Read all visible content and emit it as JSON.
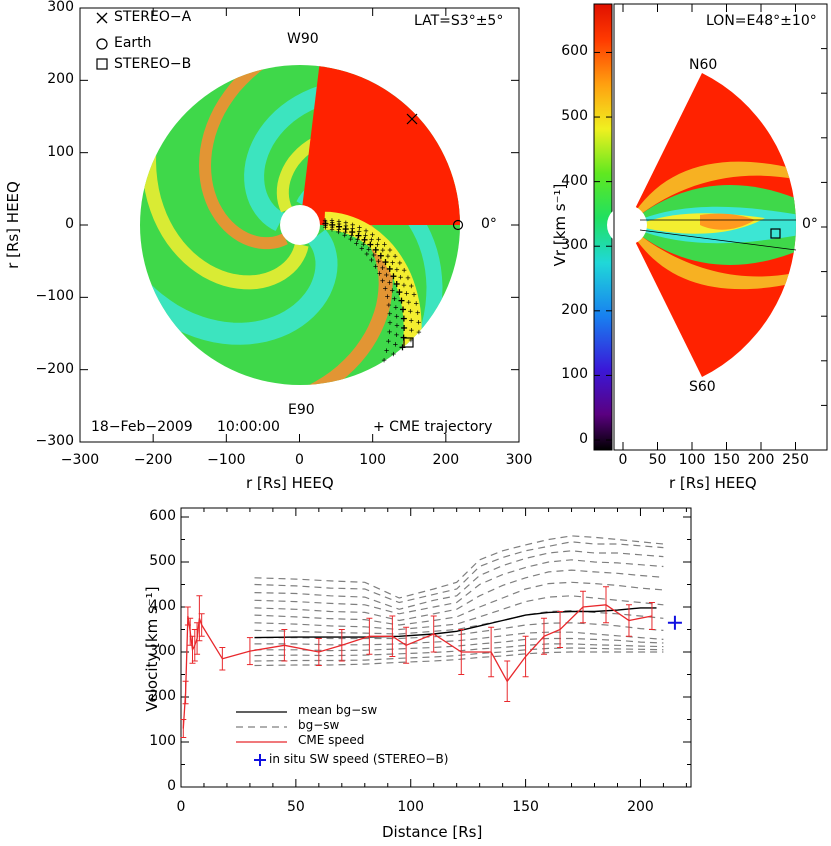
{
  "colors": {
    "axis": "#000000",
    "bg_sw_dash": "#7f7f7f",
    "mean_bg_sw": "#000000",
    "cme_speed": "#e8282c",
    "in_situ": "#1010e0",
    "fast_wind": "#ff2200",
    "slow_wind_green": "#3fd84a",
    "slow_wind_cyan": "#3ce6d4",
    "moderate_yellow": "#f4ee30"
  },
  "map_panel": {
    "legend": {
      "stereo_a": "STEREO−A",
      "earth": "Earth",
      "stereo_b": "STEREO−B"
    },
    "lat_label": "LAT=S3°±5°",
    "w90": "W90",
    "e90": "E90",
    "zero_deg": "0°",
    "date": "18−Feb−2009",
    "time": "10:00:00",
    "trajectory_label": "+ CME trajectory",
    "xlabel": "r [Rs] HEEQ",
    "ylabel": "r [Rs] HEEQ",
    "xlim": [
      -300,
      300
    ],
    "ylim": [
      -300,
      300
    ],
    "xticks": [
      "−300",
      "−200",
      "−100",
      "0",
      "100",
      "200",
      "300"
    ],
    "yticks": [
      "300",
      "200",
      "100",
      "0",
      "−100",
      "−200",
      "−300"
    ],
    "outer_radius": 215,
    "inner_radius": 21,
    "stereo_a_pos": [
      150,
      143
    ],
    "earth_pos": [
      212,
      0
    ],
    "stereo_b_pos": [
      147,
      -160
    ]
  },
  "merid_panel": {
    "lon_label": "LON=E48°±10°",
    "n60": "N60",
    "s60": "S60",
    "zero_deg": "0°",
    "xlabel": "r [Rs] HEEQ",
    "xticks": [
      "0",
      "50",
      "100",
      "150",
      "200",
      "250"
    ],
    "xlim": [
      0,
      290
    ],
    "colorbar_label": "Vr [km s⁻¹]",
    "colorbar_ticks": [
      "0",
      "100",
      "200",
      "300",
      "400",
      "500",
      "600"
    ],
    "colorbar_range": [
      0,
      675
    ],
    "stereo_b_pos": [
      215,
      3
    ]
  },
  "velocity_panel": {
    "xlabel": "Distance [Rs]",
    "ylabel": "Velocity [km s⁻¹]",
    "xlim": [
      0,
      222
    ],
    "ylim": [
      0,
      620
    ],
    "xticks": [
      "0",
      "50",
      "100",
      "150",
      "200"
    ],
    "yticks": [
      "0",
      "100",
      "200",
      "300",
      "400",
      "500",
      "600"
    ],
    "legend": {
      "mean": "mean bg−sw",
      "bg": "bg−sw",
      "cme": "CME speed",
      "insitu": "in situ SW speed (STEREO−B)"
    }
  },
  "chart_data": {
    "type": "line",
    "title": "",
    "xlabel": "Distance [Rs]",
    "ylabel": "Velocity [km s⁻¹]",
    "xlim": [
      0,
      222
    ],
    "ylim": [
      0,
      620
    ],
    "grid": false,
    "legend_position": "bottom-left",
    "series": [
      {
        "name": "mean bg−sw",
        "x": [
          32,
          50,
          65,
          80,
          95,
          110,
          120,
          130,
          140,
          150,
          160,
          170,
          180,
          190,
          200,
          207
        ],
        "y": [
          332,
          333,
          333,
          333,
          335,
          340,
          346,
          358,
          370,
          382,
          388,
          390,
          390,
          393,
          398,
          398
        ]
      },
      {
        "name": "bg−sw",
        "x": [
          32,
          50,
          65,
          80,
          95,
          110,
          120,
          130,
          140,
          150,
          160,
          170,
          180,
          190,
          200,
          210
        ],
        "y_sets": [
          [
            465,
            462,
            458,
            455,
            420,
            440,
            455,
            505,
            525,
            538,
            550,
            558,
            555,
            550,
            545,
            540
          ],
          [
            450,
            447,
            442,
            440,
            410,
            428,
            440,
            490,
            510,
            525,
            535,
            545,
            540,
            540,
            536,
            532
          ],
          [
            432,
            430,
            425,
            422,
            395,
            415,
            425,
            470,
            492,
            508,
            520,
            525,
            520,
            520,
            516,
            512
          ],
          [
            415,
            412,
            408,
            405,
            385,
            400,
            410,
            450,
            472,
            488,
            500,
            505,
            500,
            498,
            494,
            490
          ],
          [
            398,
            395,
            390,
            388,
            370,
            385,
            395,
            425,
            448,
            465,
            478,
            482,
            478,
            475,
            470,
            466
          ],
          [
            382,
            378,
            374,
            372,
            360,
            370,
            378,
            400,
            420,
            440,
            452,
            455,
            452,
            448,
            442,
            438
          ],
          [
            365,
            362,
            358,
            356,
            350,
            357,
            362,
            378,
            395,
            412,
            422,
            425,
            420,
            415,
            410,
            405
          ],
          [
            348,
            346,
            343,
            342,
            340,
            346,
            350,
            360,
            370,
            382,
            390,
            392,
            388,
            385,
            380,
            375
          ],
          [
            332,
            332,
            330,
            330,
            330,
            334,
            338,
            345,
            352,
            360,
            364,
            365,
            362,
            358,
            352,
            348
          ],
          [
            318,
            318,
            316,
            316,
            318,
            322,
            325,
            330,
            336,
            342,
            344,
            344,
            340,
            336,
            332,
            328
          ],
          [
            305,
            305,
            303,
            304,
            307,
            310,
            313,
            318,
            322,
            328,
            330,
            330,
            328,
            326,
            322,
            320
          ],
          [
            292,
            293,
            292,
            293,
            296,
            299,
            302,
            307,
            310,
            315,
            318,
            318,
            316,
            315,
            313,
            312
          ],
          [
            280,
            281,
            281,
            282,
            286,
            289,
            292,
            297,
            300,
            305,
            308,
            309,
            308,
            307,
            306,
            305
          ],
          [
            270,
            271,
            271,
            273,
            277,
            280,
            283,
            288,
            291,
            296,
            299,
            300,
            300,
            300,
            300,
            300
          ]
        ]
      },
      {
        "name": "CME speed",
        "x": [
          1,
          2,
          3,
          4,
          5,
          6,
          7,
          8,
          9,
          18,
          30,
          45,
          60,
          70,
          82,
          92,
          98,
          110,
          122,
          135,
          142,
          150,
          158,
          165,
          175,
          185,
          195,
          205
        ],
        "y": [
          130,
          210,
          380,
          345,
          305,
          315,
          330,
          375,
          360,
          285,
          302,
          315,
          300,
          315,
          335,
          335,
          315,
          340,
          300,
          300,
          235,
          290,
          335,
          350,
          400,
          405,
          370,
          380
        ],
        "err": [
          20,
          25,
          20,
          30,
          30,
          35,
          35,
          50,
          25,
          25,
          30,
          35,
          30,
          35,
          40,
          45,
          40,
          40,
          50,
          55,
          45,
          45,
          40,
          40,
          35,
          40,
          35,
          30
        ]
      },
      {
        "name": "in situ SW speed (STEREO−B)",
        "x": [
          215
        ],
        "y": [
          365
        ]
      }
    ]
  }
}
